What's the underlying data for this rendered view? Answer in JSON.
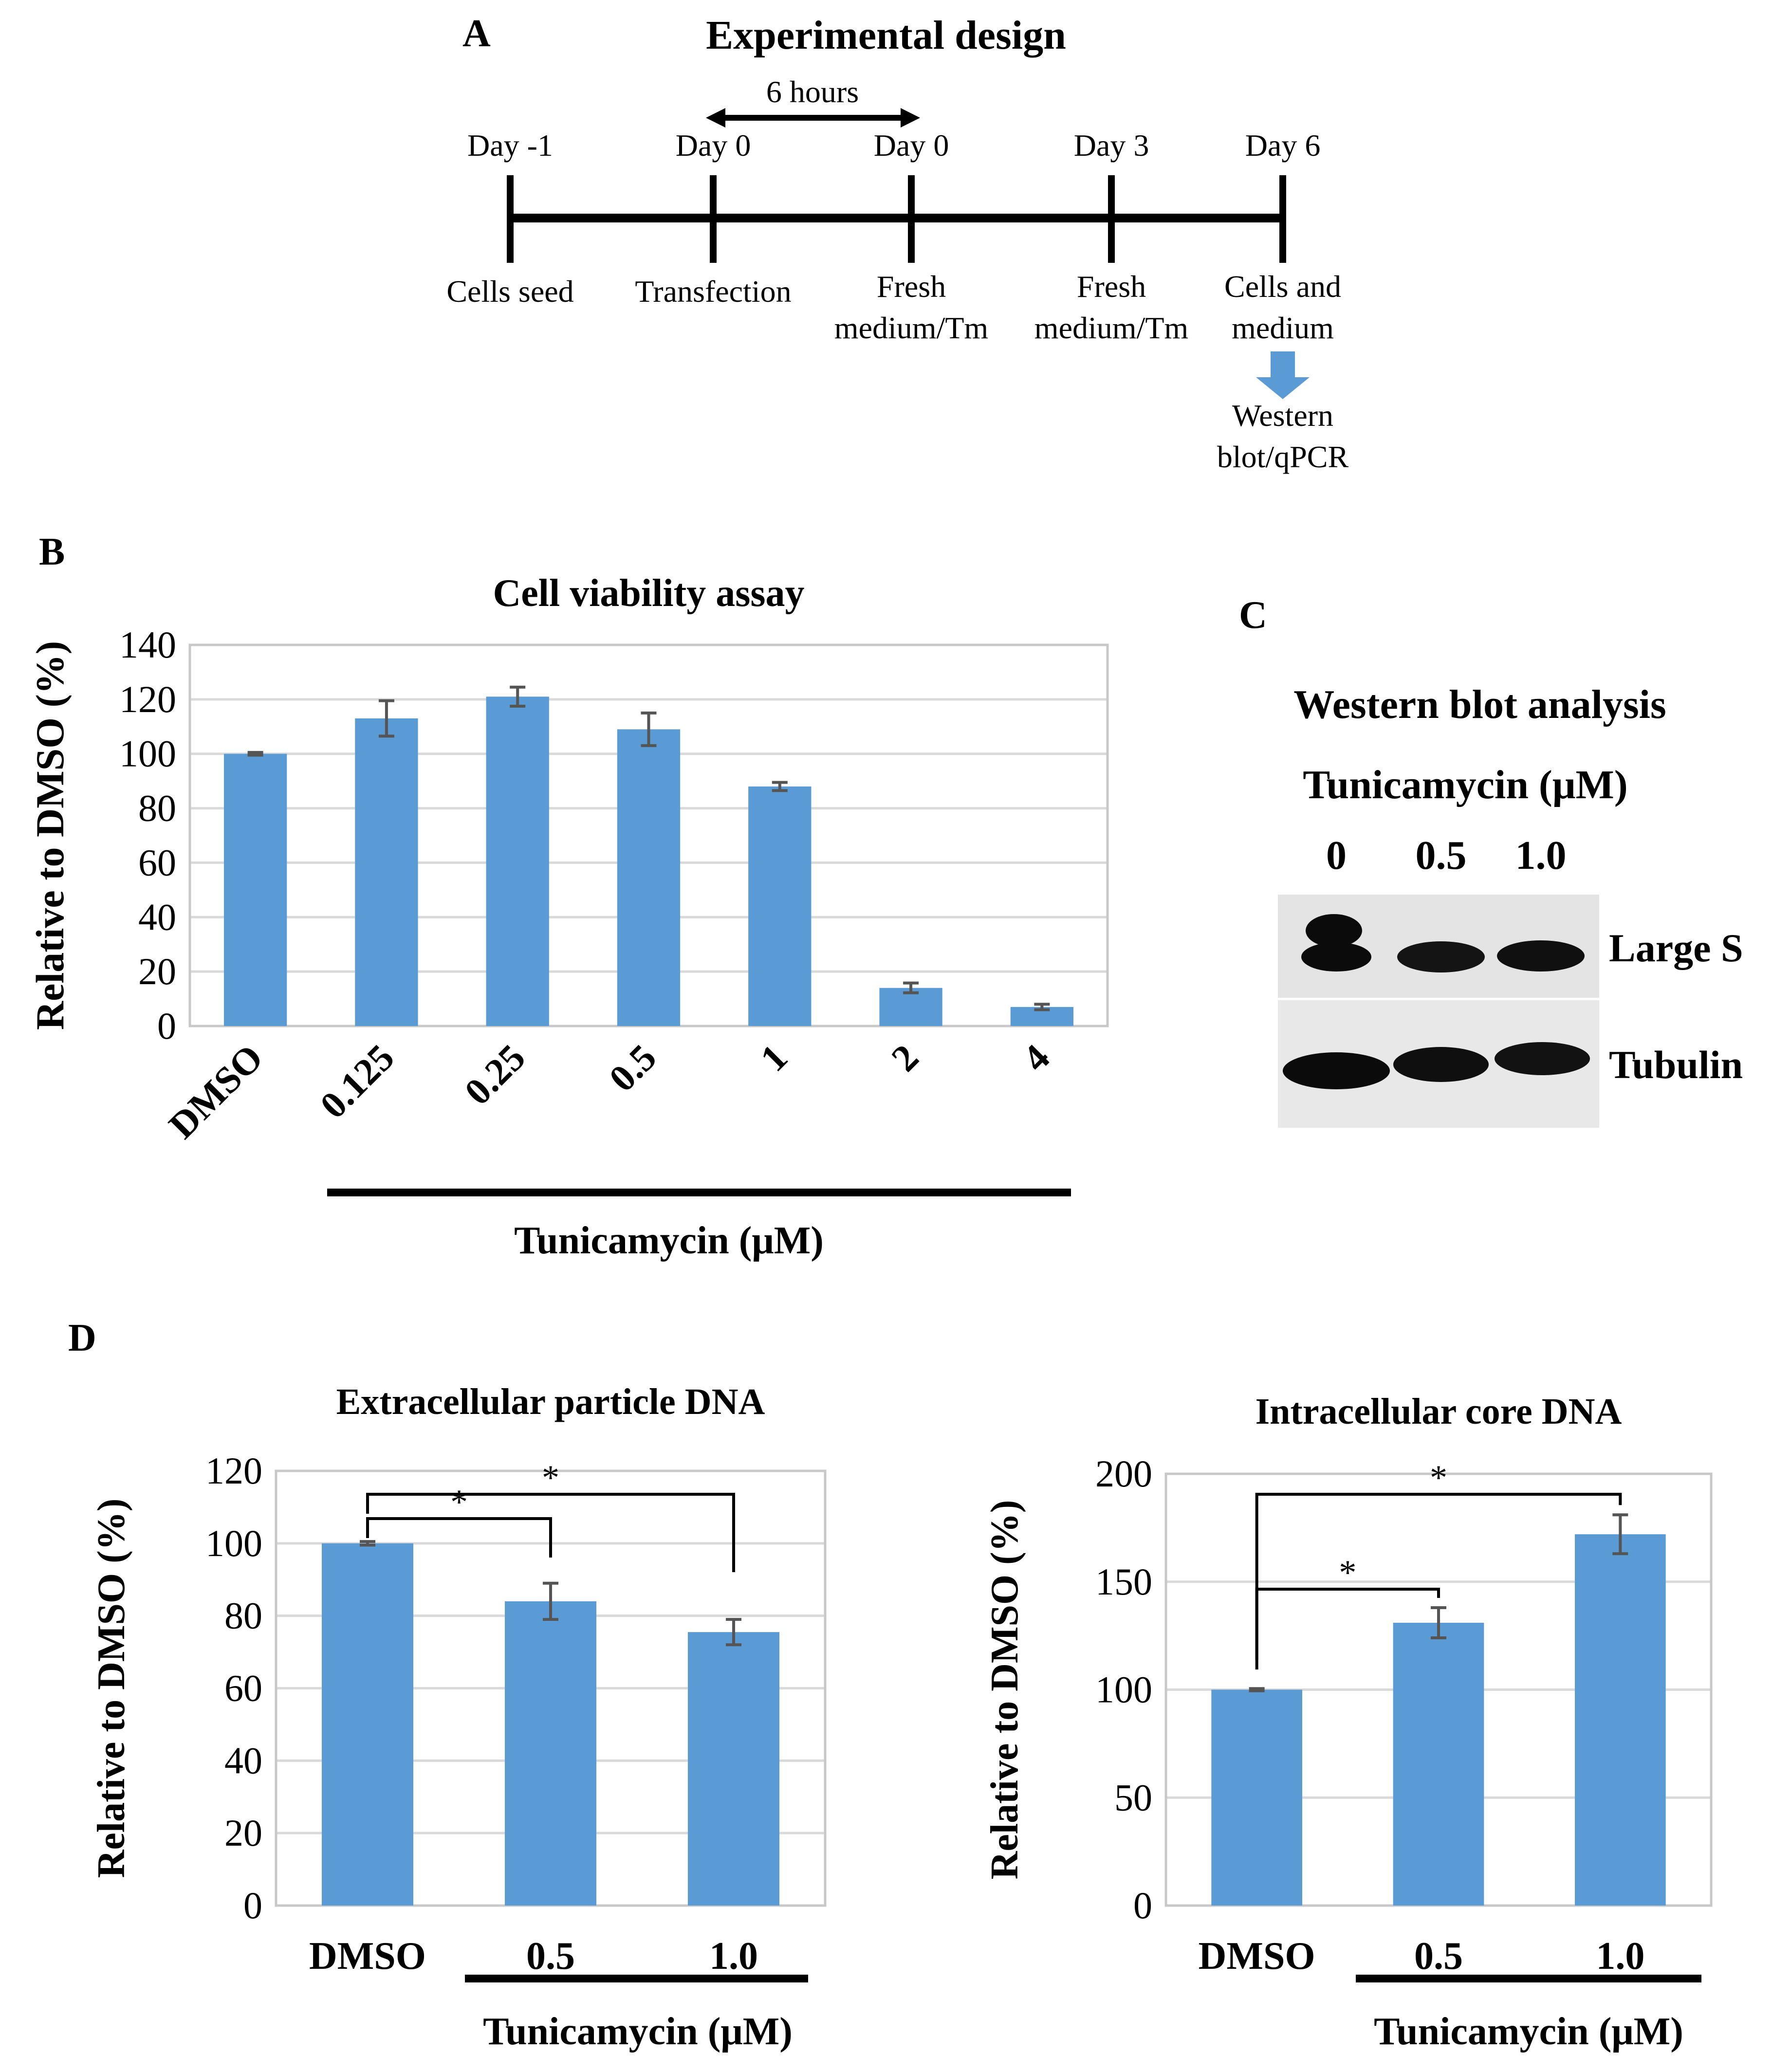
{
  "figure": {
    "panel_labels": {
      "a": "A",
      "b": "B",
      "c": "C",
      "d": "D"
    },
    "colors": {
      "bar": "#5b9bd5",
      "arrow": "#5b9bd5",
      "error": "#555555"
    }
  },
  "design": {
    "title": "Experimental design",
    "span_label": "6 hours",
    "events": [
      {
        "day": "Day -1",
        "lines": [
          "Cells seed"
        ]
      },
      {
        "day": "Day 0",
        "lines": [
          "Transfection"
        ]
      },
      {
        "day": "Day 0",
        "lines": [
          "Fresh",
          "medium/Tm"
        ]
      },
      {
        "day": "Day 3",
        "lines": [
          "Fresh",
          "medium/Tm"
        ]
      },
      {
        "day": "Day 6",
        "lines": [
          "Cells and",
          "medium"
        ]
      }
    ],
    "output_lines": [
      "Western",
      "blot/qPCR"
    ]
  },
  "western": {
    "title": "Western blot analysis",
    "treatment_label": "Tunicamycin (μM)",
    "lanes": [
      "0",
      "0.5",
      "1.0"
    ],
    "bands": [
      "Large S",
      "Tubulin"
    ]
  },
  "chart_data": [
    {
      "id": "B",
      "type": "bar",
      "title": "Cell viability assay",
      "xlabel": "Tunicamycin (μM)",
      "ylabel": "Relative to DMSO (%)",
      "categories": [
        "DMSO",
        "0.125",
        "0.25",
        "0.5",
        "1",
        "2",
        "4"
      ],
      "values": [
        100,
        113,
        121,
        109,
        88,
        14,
        7
      ],
      "errors": [
        0.5,
        6.5,
        3.5,
        6,
        1.5,
        1.8,
        1
      ],
      "ylim": [
        0,
        140
      ],
      "yticks": [
        0,
        20,
        40,
        60,
        80,
        100,
        120,
        140
      ],
      "grid": true
    },
    {
      "id": "D1",
      "type": "bar",
      "title": "Extracellular particle DNA",
      "xlabel": "Tunicamycin (μM)",
      "ylabel": "Relative to DMSO (%)",
      "categories": [
        "DMSO",
        "0.5",
        "1.0"
      ],
      "values": [
        100,
        84,
        75.5
      ],
      "errors": [
        0.5,
        5,
        3.5
      ],
      "ylim": [
        0,
        120
      ],
      "yticks": [
        0,
        20,
        40,
        60,
        80,
        100,
        120
      ],
      "grid": true,
      "significance": [
        {
          "from": 0,
          "to": 1,
          "label": "*"
        },
        {
          "from": 0,
          "to": 2,
          "label": "*"
        }
      ]
    },
    {
      "id": "D2",
      "type": "bar",
      "title": "Intracellular core DNA",
      "xlabel": "Tunicamycin (μM)",
      "ylabel": "Relative to DMSO (%)",
      "categories": [
        "DMSO",
        "0.5",
        "1.0"
      ],
      "values": [
        100,
        131,
        172
      ],
      "errors": [
        0.5,
        7,
        9
      ],
      "ylim": [
        0,
        200
      ],
      "yticks": [
        0,
        50,
        100,
        150,
        200
      ],
      "grid": true,
      "significance": [
        {
          "from": 0,
          "to": 1,
          "label": "*"
        },
        {
          "from": 0,
          "to": 2,
          "label": "*"
        }
      ]
    }
  ]
}
